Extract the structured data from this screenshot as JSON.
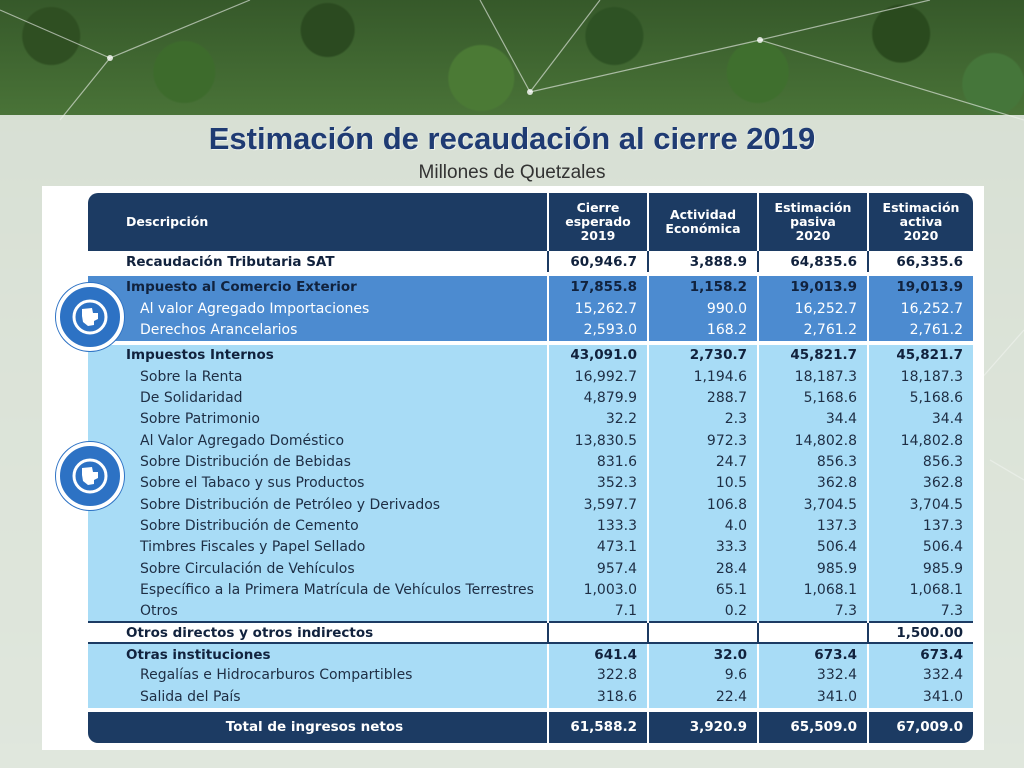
{
  "header": {
    "title": "Estimación de recaudación al cierre 2019",
    "subtitle": "Millones de Quetzales"
  },
  "table": {
    "columns": [
      {
        "lines": [
          "Descripción"
        ]
      },
      {
        "lines": [
          "Cierre",
          "esperado",
          "2019"
        ]
      },
      {
        "lines": [
          "Actividad",
          "Económica"
        ]
      },
      {
        "lines": [
          "Estimación",
          "pasiva",
          "2020"
        ]
      },
      {
        "lines": [
          "Estimación",
          "activa",
          "2020"
        ]
      }
    ],
    "rows": [
      {
        "label": "Recaudación Tributaria SAT",
        "values": [
          "60,946.7",
          "3,888.9",
          "64,835.6",
          "66,335.6"
        ],
        "style": "white bold"
      },
      {
        "label": "Impuesto al Comercio Exterior",
        "values": [
          "17,855.8",
          "1,158.2",
          "19,013.9",
          "19,013.9"
        ],
        "style": "dark bold"
      },
      {
        "label": "Al valor Agregado Importaciones",
        "values": [
          "15,262.7",
          "990.0",
          "16,252.7",
          "16,252.7"
        ],
        "style": "dark sub"
      },
      {
        "label": "Derechos Arancelarios",
        "values": [
          "2,593.0",
          "168.2",
          "2,761.2",
          "2,761.2"
        ],
        "style": "dark sub"
      },
      {
        "label": "Impuestos Internos",
        "values": [
          "43,091.0",
          "2,730.7",
          "45,821.7",
          "45,821.7"
        ],
        "style": "light bold"
      },
      {
        "label": "Sobre la Renta",
        "values": [
          "16,992.7",
          "1,194.6",
          "18,187.3",
          "18,187.3"
        ],
        "style": "light sub"
      },
      {
        "label": "De Solidaridad",
        "values": [
          "4,879.9",
          "288.7",
          "5,168.6",
          "5,168.6"
        ],
        "style": "light sub"
      },
      {
        "label": "Sobre Patrimonio",
        "values": [
          "32.2",
          "2.3",
          "34.4",
          "34.4"
        ],
        "style": "light sub"
      },
      {
        "label": "Al Valor Agregado Doméstico",
        "values": [
          "13,830.5",
          "972.3",
          "14,802.8",
          "14,802.8"
        ],
        "style": "light sub"
      },
      {
        "label": "Sobre Distribución de Bebidas",
        "values": [
          "831.6",
          "24.7",
          "856.3",
          "856.3"
        ],
        "style": "light sub"
      },
      {
        "label": "Sobre el Tabaco y sus Productos",
        "values": [
          "352.3",
          "10.5",
          "362.8",
          "362.8"
        ],
        "style": "light sub"
      },
      {
        "label": "Sobre Distribución de Petróleo y Derivados",
        "values": [
          "3,597.7",
          "106.8",
          "3,704.5",
          "3,704.5"
        ],
        "style": "light sub"
      },
      {
        "label": "Sobre Distribución de Cemento",
        "values": [
          "133.3",
          "4.0",
          "137.3",
          "137.3"
        ],
        "style": "light sub"
      },
      {
        "label": "Timbres Fiscales y Papel Sellado",
        "values": [
          "473.1",
          "33.3",
          "506.4",
          "506.4"
        ],
        "style": "light sub"
      },
      {
        "label": "Sobre Circulación de Vehículos",
        "values": [
          "957.4",
          "28.4",
          "985.9",
          "985.9"
        ],
        "style": "light sub"
      },
      {
        "label": "Específico a la Primera Matrícula de Vehículos Terrestres",
        "values": [
          "1,003.0",
          "65.1",
          "1,068.1",
          "1,068.1"
        ],
        "style": "light sub"
      },
      {
        "label": "Otros",
        "values": [
          "7.1",
          "0.2",
          "7.3",
          "7.3"
        ],
        "style": "light sub"
      },
      {
        "label": "Otros directos y otros indirectos",
        "values": [
          "",
          "",
          "",
          "1,500.00"
        ],
        "style": "white bold sep"
      },
      {
        "label": "Otras instituciones",
        "values": [
          "641.4",
          "32.0",
          "673.4",
          "673.4"
        ],
        "style": "light bold sep"
      },
      {
        "label": "Regalías e Hidrocarburos Compartibles",
        "values": [
          "322.8",
          "9.6",
          "332.4",
          "332.4"
        ],
        "style": "light sub"
      },
      {
        "label": "Salida del País",
        "values": [
          "318.6",
          "22.4",
          "341.0",
          "341.0"
        ],
        "style": "light sub"
      }
    ],
    "total": {
      "label": "Total de ingresos netos",
      "values": [
        "61,588.2",
        "3,920.9",
        "65,509.0",
        "67,009.0"
      ]
    }
  },
  "icons": {
    "badge_1": "guatemala-map-icon",
    "badge_2": "guatemala-map-icon"
  },
  "colors": {
    "header": "#1c3b63",
    "exterior": "#4c8bd0",
    "internos": "#a8dcf6",
    "title": "#1f3b73"
  }
}
